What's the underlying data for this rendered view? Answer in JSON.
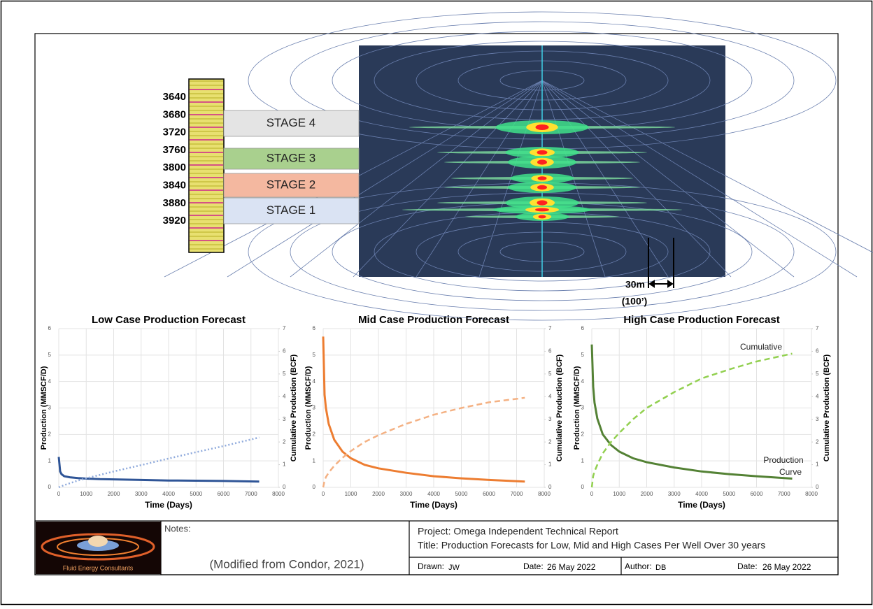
{
  "log": {
    "depths": [
      3640,
      3680,
      3720,
      3760,
      3800,
      3840,
      3880,
      3920
    ]
  },
  "stages": [
    {
      "label": "STAGE 4",
      "color": "#e4e4e4"
    },
    {
      "label": "STAGE 3",
      "color": "#a9d08e"
    },
    {
      "label": "STAGE 2",
      "color": "#f4b8a0"
    },
    {
      "label": "STAGE 1",
      "color": "#dae3f3"
    }
  ],
  "scale_bar": {
    "label": "30m",
    "sublabel": "(100’)"
  },
  "chart_data": [
    {
      "type": "line",
      "title": "Low Case Production Forecast",
      "xlabel": "Time (Days)",
      "ylabel": "Production (MMSCF/D)",
      "y2label": "Cumulative Production (BCF)",
      "x": [
        0,
        50,
        100,
        200,
        400,
        700,
        1000,
        1500,
        2000,
        3000,
        4000,
        5000,
        6000,
        7300
      ],
      "series": [
        {
          "color": "#2f5597",
          "line_style": "solid",
          "values": [
            1.15,
            0.6,
            0.5,
            0.42,
            0.38,
            0.35,
            0.33,
            0.31,
            0.3,
            0.28,
            0.26,
            0.25,
            0.24,
            0.22
          ]
        },
        {
          "color": "#8faadc",
          "line_style": "dotted",
          "axis": "y2",
          "values": [
            0,
            0.03,
            0.05,
            0.1,
            0.18,
            0.3,
            0.4,
            0.55,
            0.7,
            0.98,
            1.27,
            1.55,
            1.82,
            2.2
          ]
        }
      ],
      "xlim": [
        0,
        8000
      ],
      "xticks": [
        0,
        1000,
        2000,
        3000,
        4000,
        5000,
        6000,
        7000,
        8000
      ],
      "ylim": [
        0,
        6
      ],
      "yticks": [
        0,
        1,
        2,
        3,
        4,
        5,
        6
      ],
      "y2lim": [
        0,
        7
      ],
      "y2ticks": [
        0,
        1,
        2,
        3,
        4,
        5,
        6,
        7
      ],
      "grid": true
    },
    {
      "type": "line",
      "title": "Mid Case Production Forecast",
      "xlabel": "Time (Days)",
      "ylabel": "Production (MMSCF/D)",
      "y2label": "Cumulative Production (BCF)",
      "x": [
        0,
        50,
        100,
        200,
        400,
        700,
        1000,
        1500,
        2000,
        3000,
        4000,
        5000,
        6000,
        7300
      ],
      "series": [
        {
          "color": "#ed7d31",
          "line_style": "solid",
          "values": [
            5.7,
            3.5,
            3.0,
            2.4,
            1.8,
            1.35,
            1.1,
            0.85,
            0.72,
            0.55,
            0.42,
            0.34,
            0.28,
            0.22
          ]
        },
        {
          "color": "#f4b183",
          "line_style": "dashed",
          "axis": "y2",
          "values": [
            0,
            0.3,
            0.45,
            0.65,
            0.95,
            1.3,
            1.6,
            2.0,
            2.3,
            2.8,
            3.2,
            3.5,
            3.75,
            3.95
          ]
        }
      ],
      "xlim": [
        0,
        8000
      ],
      "xticks": [
        0,
        1000,
        2000,
        3000,
        4000,
        5000,
        6000,
        7000,
        8000
      ],
      "ylim": [
        0,
        6
      ],
      "yticks": [
        0,
        1,
        2,
        3,
        4,
        5,
        6
      ],
      "y2lim": [
        0,
        7
      ],
      "y2ticks": [
        0,
        1,
        2,
        3,
        4,
        5,
        6,
        7
      ],
      "grid": true
    },
    {
      "type": "line",
      "title": "High Case Production Forecast",
      "xlabel": "Time (Days)",
      "ylabel": "Production (MMSCF/D)",
      "y2label": "Cumulative Production (BCF)",
      "x": [
        0,
        50,
        100,
        200,
        400,
        700,
        1000,
        1500,
        2000,
        3000,
        4000,
        5000,
        6000,
        7300
      ],
      "series": [
        {
          "color": "#548235",
          "line_style": "solid",
          "values": [
            5.4,
            3.8,
            3.2,
            2.6,
            2.0,
            1.6,
            1.35,
            1.1,
            0.95,
            0.75,
            0.6,
            0.5,
            0.42,
            0.33
          ]
        },
        {
          "color": "#92d050",
          "line_style": "dashed",
          "axis": "y2",
          "values": [
            0,
            0.5,
            0.7,
            1.0,
            1.5,
            2.0,
            2.4,
            3.0,
            3.5,
            4.2,
            4.8,
            5.2,
            5.55,
            5.9
          ]
        }
      ],
      "annotations": [
        "Cumulative",
        "Production",
        "Curve"
      ],
      "xlim": [
        0,
        8000
      ],
      "xticks": [
        0,
        1000,
        2000,
        3000,
        4000,
        5000,
        6000,
        7000,
        8000
      ],
      "ylim": [
        0,
        6
      ],
      "yticks": [
        0,
        1,
        2,
        3,
        4,
        5,
        6
      ],
      "y2lim": [
        0,
        7
      ],
      "y2ticks": [
        0,
        1,
        2,
        3,
        4,
        5,
        6,
        7
      ],
      "grid": true
    }
  ],
  "title_block": {
    "logo_text": "Fluid Energy Consultants",
    "notes_label": "Notes:",
    "notes": "(Modified from Condor, 2021)",
    "project": "Project: Omega Independent Technical Report",
    "title": "Title: Production Forecasts for Low, Mid and High Cases Per Well Over 30 years",
    "drawn_label": "Drawn:",
    "drawn": "JW",
    "date_label": "Date:",
    "date": "26 May 2022",
    "author_label": "Author:",
    "author": "DB",
    "date2_label": "Date:",
    "date2": "26 May 2022"
  }
}
